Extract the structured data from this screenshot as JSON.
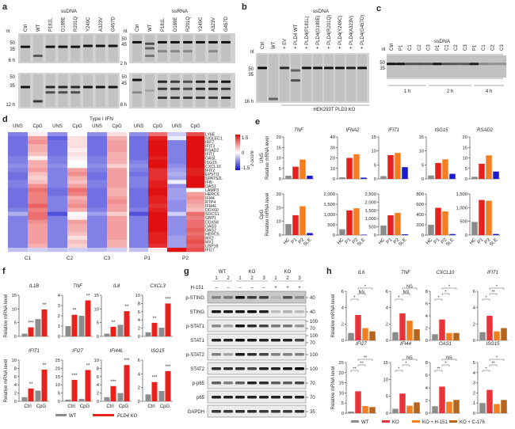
{
  "panel_labels": {
    "a": "a",
    "b": "b",
    "c": "c",
    "d": "d",
    "e": "e",
    "f": "f",
    "g": "g",
    "h": "h"
  },
  "panel_a": {
    "ssdna_title": "ssDNA",
    "ssrna_title": "ssRNA",
    "nt": "nt",
    "lanes": [
      "Ctrl",
      "WT",
      "P181L",
      "D189E",
      "R201Q",
      "Y249C",
      "A323V",
      "G457D"
    ],
    "dna_markers": [
      "50",
      "35"
    ],
    "rna_markers": [
      "50",
      "45"
    ],
    "dna_times": [
      "6 h",
      "12 h"
    ],
    "rna_times": [
      "2 h",
      "8 h"
    ]
  },
  "panel_b": {
    "title": "ssDNA",
    "nt": "nt",
    "lanes": [
      "Ctrl",
      "WT",
      "+ EV",
      "+ PLD4 WT",
      "+ PLD4(P181L)",
      "+ PLD4(D189E)",
      "+ PLD4(R201Q)",
      "+ PLD4(Y249C)",
      "+ PLD4(A323V)",
      "+ PLD4(G457D)"
    ],
    "markers": [
      "50",
      "35"
    ],
    "time": "16 h",
    "cell_line": "HEK293T PLD3 KO"
  },
  "panel_c": {
    "title": "ssDNA",
    "nt": "nt",
    "lanes": [
      "Ctrl",
      "P1",
      "C1",
      "C2",
      "C3",
      "P1",
      "C1",
      "C2",
      "C3",
      "P1",
      "C1",
      "C2",
      "C3"
    ],
    "markers": [
      "50",
      "35"
    ],
    "times": [
      "1 h",
      "2 h",
      "4 h"
    ]
  },
  "panel_g": {
    "groups": [
      {
        "label": "WT",
        "lanes": [
          "1",
          "2"
        ]
      },
      {
        "label": "KO",
        "lanes": [
          "1",
          "2",
          "3"
        ]
      },
      {
        "label": "KO",
        "lanes": [
          "1",
          "2",
          "3"
        ]
      }
    ],
    "treatment_label": "H-151",
    "treatment": [
      "–",
      "–",
      "–",
      "–",
      "–",
      "+",
      "+",
      "+"
    ],
    "rows": [
      {
        "label": "p-STING",
        "markers": [
          "40"
        ]
      },
      {
        "label": "STING",
        "markers": [
          "40"
        ]
      },
      {
        "label": "p-STAT1",
        "markers": [
          "100",
          "70"
        ]
      },
      {
        "label": "STAT1",
        "markers": [
          "100",
          "70"
        ]
      },
      {
        "label": "p-STAT2",
        "markers": [
          "100"
        ]
      },
      {
        "label": "STAT2",
        "markers": [
          "100"
        ]
      },
      {
        "label": "p-p65",
        "markers": [
          "70"
        ]
      },
      {
        "label": "p65",
        "markers": [
          "70"
        ]
      },
      {
        "label": "GAPDH",
        "markers": [
          "35"
        ]
      }
    ]
  },
  "chart_data": [
    {
      "id": "d",
      "type": "heatmap",
      "title": "Type I IFN",
      "column_headers": [
        "UNS",
        "CpG",
        "UNS",
        "CpG",
        "UNS",
        "CpG",
        "UNS",
        "CpG",
        "UNS",
        "CpG"
      ],
      "samples": [
        "C1",
        "C2",
        "C3",
        "P1",
        "P2"
      ],
      "colorbar": {
        "label": "z-score",
        "ticks": [
          "1.5",
          "0",
          "-1.5"
        ],
        "range": [
          -1.5,
          1.5
        ],
        "low": "#1010d0",
        "mid": "#ffffff",
        "high": "#e01010"
      },
      "rows": [
        "LY6E",
        "SIGLEC1",
        "IRF7",
        "IFIT3",
        "RSAD2",
        "IFIT1",
        "OASL",
        "ISG15",
        "CXCL10",
        "IFIT2",
        "EPSTI1",
        "SPATS2L",
        "IFI6",
        "OAS1",
        "LAMP3",
        "HERC6",
        "IFI44",
        "RTP4",
        "IFI44L",
        "DDX60",
        "SOCS1",
        "GBP1",
        "DDX58",
        "OAS3",
        "OAS2",
        "HERC5",
        "MX2",
        "MX1",
        "USP18",
        "IFI27"
      ],
      "values": [
        [
          -0.8,
          0.1,
          -0.7,
          0.0,
          -0.7,
          0.2,
          -0.7,
          0.9,
          -0.3,
          1.1
        ],
        [
          -0.9,
          0.6,
          -1.0,
          0.2,
          -0.9,
          0.5,
          -0.9,
          1.4,
          -0.1,
          1.5
        ],
        [
          -0.9,
          0.7,
          -0.9,
          0.2,
          -0.9,
          0.6,
          -0.9,
          1.5,
          -0.8,
          1.5
        ],
        [
          -0.9,
          0.5,
          -0.9,
          0.2,
          -0.9,
          0.6,
          -0.9,
          1.5,
          -0.8,
          1.5
        ],
        [
          -0.9,
          0.5,
          -0.9,
          0.1,
          -0.9,
          0.6,
          -0.9,
          1.5,
          -0.8,
          1.5
        ],
        [
          -0.9,
          0.4,
          -0.9,
          0.2,
          -0.9,
          0.5,
          -0.9,
          1.5,
          -0.8,
          1.5
        ],
        [
          -0.8,
          0.1,
          -0.8,
          0.1,
          -0.8,
          0.5,
          -0.9,
          1.4,
          -0.8,
          1.5
        ],
        [
          -0.8,
          0.5,
          -0.8,
          0.0,
          -0.8,
          0.5,
          -0.8,
          1.5,
          -0.8,
          1.5
        ],
        [
          -0.7,
          0.5,
          -0.7,
          0.0,
          -0.7,
          0.3,
          -0.7,
          1.5,
          -0.7,
          1.5
        ],
        [
          -0.8,
          0.6,
          -0.8,
          0.6,
          -0.8,
          0.6,
          -0.8,
          1.3,
          -0.6,
          1.4
        ],
        [
          -0.9,
          0.4,
          -0.8,
          0.7,
          -0.9,
          0.6,
          -0.9,
          1.3,
          -0.5,
          1.4
        ],
        [
          -0.9,
          0.3,
          -0.8,
          0.5,
          -0.9,
          0.6,
          -0.8,
          1.3,
          -0.6,
          1.5
        ],
        [
          -0.8,
          0.4,
          -0.8,
          0.4,
          -0.8,
          0.6,
          -0.8,
          1.4,
          -0.1,
          1.5
        ],
        [
          -0.8,
          0.7,
          -0.8,
          0.6,
          -0.8,
          0.6,
          -0.8,
          1.4,
          -0.7,
          1.5
        ],
        [
          -0.9,
          0.9,
          -0.9,
          0.9,
          -0.9,
          0.5,
          -0.9,
          1.6,
          -0.6,
          0.0
        ],
        [
          -0.9,
          0.8,
          -0.9,
          0.8,
          -0.9,
          0.5,
          -0.9,
          1.5,
          -0.6,
          0.6
        ],
        [
          -0.9,
          0.8,
          -0.8,
          0.5,
          -0.9,
          0.6,
          -0.9,
          1.4,
          -0.6,
          0.7
        ],
        [
          -0.9,
          0.8,
          -0.8,
          0.6,
          -0.9,
          0.7,
          -0.9,
          1.4,
          -0.7,
          0.6
        ],
        [
          -0.9,
          1.0,
          -0.8,
          0.7,
          -0.9,
          0.6,
          -0.9,
          1.3,
          -0.7,
          0.5
        ],
        [
          -0.8,
          0.8,
          -0.8,
          0.5,
          -0.8,
          0.6,
          -0.8,
          1.4,
          -0.7,
          0.4
        ],
        [
          -0.5,
          0.9,
          -1.1,
          0.0,
          -0.6,
          0.3,
          -1.1,
          1.5,
          -0.3,
          0.9
        ],
        [
          -0.8,
          0.9,
          -0.8,
          0.1,
          -0.8,
          0.6,
          -0.8,
          1.5,
          -0.7,
          0.8
        ],
        [
          -0.8,
          0.7,
          -0.8,
          0.6,
          -0.8,
          0.6,
          -0.8,
          1.5,
          -0.7,
          0.9
        ],
        [
          -0.8,
          0.6,
          -0.8,
          0.5,
          -0.8,
          0.6,
          -0.8,
          1.5,
          -0.7,
          0.9
        ],
        [
          -0.8,
          0.6,
          -0.8,
          0.5,
          -0.8,
          0.6,
          -0.8,
          1.5,
          -0.7,
          1.0
        ],
        [
          -0.8,
          0.6,
          -0.8,
          0.4,
          -0.8,
          0.6,
          -0.8,
          1.4,
          -0.7,
          0.9
        ],
        [
          -0.8,
          0.6,
          -0.8,
          0.2,
          -0.8,
          0.6,
          -0.8,
          1.4,
          -0.6,
          1.0
        ],
        [
          -0.8,
          0.6,
          -0.8,
          0.4,
          -0.8,
          0.5,
          -0.8,
          1.4,
          -0.6,
          1.1
        ],
        [
          -0.8,
          0.5,
          -0.8,
          0.3,
          -0.8,
          0.5,
          -0.8,
          1.3,
          -0.6,
          1.0
        ],
        [
          -0.4,
          -0.3,
          -0.4,
          -0.3,
          -0.4,
          -0.3,
          -0.4,
          0.1,
          1.6,
          1.1
        ]
      ]
    },
    {
      "id": "e",
      "type": "bar",
      "categories": [
        "HC",
        "P1",
        "P2",
        "SLE"
      ],
      "colors": [
        "#8c8c8c",
        "#e8211c",
        "#f57f20",
        "#1c1cc8"
      ],
      "row_labels": [
        "UNS",
        "CpG"
      ],
      "ylabel": "Relative mRNA level",
      "genes": [
        "TNF",
        "IFNA2",
        "IFIT1",
        "ISG15",
        "RSAD2"
      ],
      "rows": [
        [
          {
            "values": [
              1.5,
              5.8,
              9.2,
              1.5
            ],
            "ylim": [
              0,
              20
            ],
            "ticks": [
              0,
              5,
              10,
              15,
              20
            ]
          },
          {
            "values": [
              1.5,
              20,
              23.5,
              1.2
            ],
            "ylim": [
              0,
              40
            ],
            "ticks": [
              0,
              10,
              20,
              30,
              40
            ]
          },
          {
            "values": [
              1,
              8.5,
              9.3,
              4.2
            ],
            "ylim": [
              0,
              15
            ],
            "ticks": [
              0,
              5,
              10,
              15
            ]
          },
          {
            "values": [
              1.2,
              5.7,
              7,
              1.8
            ],
            "ylim": [
              0,
              15
            ],
            "ticks": [
              0,
              5,
              10,
              15
            ]
          },
          {
            "values": [
              1,
              7.2,
              11.2,
              3.5
            ],
            "ylim": [
              0,
              20
            ],
            "ticks": [
              0,
              5,
              10,
              15,
              20
            ]
          }
        ],
        [
          {
            "values": [
              8,
              14.5,
              21,
              1.5
            ],
            "ylim": [
              0,
              30
            ],
            "ticks": [
              0,
              10,
              20,
              30
            ]
          },
          {
            "values": [
              280,
              1200,
              1300,
              20
            ],
            "ylim": [
              0,
              2000
            ],
            "ticks": [
              0,
              500,
              1000,
              1500,
              2000
            ]
          },
          {
            "values": [
              580,
              1200,
              1350,
              50
            ],
            "ylim": [
              0,
              2500
            ],
            "ticks": [
              0,
              500,
              1000,
              1500,
              2000,
              2500
            ]
          },
          {
            "values": [
              200,
              530,
              460,
              20
            ],
            "ylim": [
              0,
              800
            ],
            "ticks": [
              0,
              200,
              400,
              600,
              800
            ]
          },
          {
            "values": [
              480,
              1280,
              1250,
              40
            ],
            "ylim": [
              0,
              1500
            ],
            "ticks": [
              0,
              500,
              1000,
              1500
            ]
          }
        ]
      ]
    },
    {
      "id": "f",
      "type": "bar",
      "groups": [
        "Ctrl",
        "CpG"
      ],
      "series": [
        {
          "name": "WT",
          "color": "#8c8c8c"
        },
        {
          "name": "PLD4 KO",
          "color": "#e8211c"
        }
      ],
      "ylabel": "Relative mRNA level",
      "charts": [
        {
          "gene": "IL1B",
          "values": [
            1,
            3.3,
            6.3,
            9.8
          ],
          "ylim": [
            0,
            15
          ],
          "ticks": [
            0,
            5,
            10,
            15
          ],
          "sig": [
            "***",
            "**"
          ]
        },
        {
          "gene": "TNF",
          "values": [
            1,
            2.1,
            2,
            3.5
          ],
          "ylim": [
            0,
            4
          ],
          "ticks": [
            0,
            1,
            2,
            3,
            4
          ],
          "sig": [
            "**",
            "**"
          ]
        },
        {
          "gene": "IL8",
          "values": [
            1,
            3.5,
            4.2,
            9.2
          ],
          "ylim": [
            0,
            15
          ],
          "ticks": [
            0,
            5,
            10,
            15
          ],
          "sig": [
            "**",
            "**"
          ]
        },
        {
          "gene": "CXCL3",
          "values": [
            1,
            3.3,
            2.1,
            8
          ],
          "ylim": [
            0,
            10
          ],
          "ticks": [
            0,
            2,
            4,
            6,
            8,
            10
          ],
          "sig": [
            "**",
            "***"
          ]
        },
        {
          "gene": "IFIT1",
          "values": [
            1,
            3.1,
            2.6,
            7.7
          ],
          "ylim": [
            0,
            10
          ],
          "ticks": [
            0,
            2,
            4,
            6,
            8,
            10
          ],
          "sig": [
            "**",
            "**"
          ]
        },
        {
          "gene": "IFI27",
          "values": [
            1,
            13,
            1.5,
            19
          ],
          "ylim": [
            0,
            25
          ],
          "ticks": [
            0,
            5,
            10,
            15,
            20,
            25
          ],
          "sig": [
            "***",
            "**"
          ]
        },
        {
          "gene": "IFI44L",
          "values": [
            1,
            3.7,
            2,
            8.8
          ],
          "ylim": [
            0,
            10
          ],
          "ticks": [
            0,
            2,
            4,
            6,
            8,
            10
          ],
          "sig": [
            "***",
            "***"
          ]
        },
        {
          "gene": "ISG15",
          "values": [
            1,
            2.8,
            1.5,
            4.4
          ],
          "ylim": [
            0,
            6
          ],
          "ticks": [
            0,
            2,
            4,
            6
          ],
          "sig": [
            "***",
            "***"
          ]
        }
      ]
    },
    {
      "id": "h",
      "type": "bar",
      "categories": [
        "WT",
        "KO",
        "KO + H-151",
        "KO + C-176"
      ],
      "colors": [
        "#8c8c8c",
        "#e8333a",
        "#f57f20",
        "#b5651d"
      ],
      "ylabel": "Relative mRNA level",
      "charts": [
        {
          "gene": "IL6",
          "values": [
            0.9,
            3.1,
            1.5,
            1.1
          ],
          "ylim": [
            0,
            6
          ],
          "ticks": [
            0,
            2,
            4,
            6
          ],
          "sig": [
            "*",
            "NS",
            "*"
          ]
        },
        {
          "gene": "TNF",
          "values": [
            1,
            3.3,
            2.4,
            1.35
          ],
          "ylim": [
            0,
            6
          ],
          "ticks": [
            0,
            2,
            4,
            6
          ],
          "sig": [
            "*",
            "NS",
            "NS"
          ]
        },
        {
          "gene": "CXCL10",
          "values": [
            1,
            3.4,
            1.2,
            1.2
          ],
          "ylim": [
            0,
            8
          ],
          "ticks": [
            0,
            2,
            4,
            6,
            8
          ],
          "sig": [
            "*",
            "*",
            "*"
          ]
        },
        {
          "gene": "IFIT1",
          "values": [
            1,
            3,
            1.1,
            1.5
          ],
          "ylim": [
            0,
            6
          ],
          "ticks": [
            0,
            2,
            4,
            6
          ],
          "sig": [
            "*",
            "**",
            "*"
          ]
        },
        {
          "gene": "IFI27",
          "values": [
            0.8,
            10.8,
            3.5,
            3
          ],
          "ylim": [
            0,
            25
          ],
          "ticks": [
            0,
            5,
            10,
            15,
            20,
            25
          ],
          "sig": [
            "**",
            "**",
            "**"
          ]
        },
        {
          "gene": "IFI44",
          "values": [
            1.3,
            5.8,
            2.2,
            3.2
          ],
          "ylim": [
            0,
            15
          ],
          "ticks": [
            0,
            5,
            10,
            15
          ],
          "sig": [
            "*",
            "*",
            "NS"
          ]
        },
        {
          "gene": "OAS1",
          "values": [
            1.1,
            4.2,
            1.8,
            2.1
          ],
          "ylim": [
            0,
            8
          ],
          "ticks": [
            0,
            2,
            4,
            6,
            8
          ],
          "sig": [
            "**",
            "*",
            "NS"
          ]
        },
        {
          "gene": "ISG15",
          "values": [
            1,
            2.3,
            0.9,
            1.3
          ],
          "ylim": [
            0,
            5
          ],
          "ticks": [
            0,
            1,
            2,
            3,
            4,
            5
          ],
          "sig": [
            "*",
            "**",
            "*"
          ]
        }
      ]
    }
  ]
}
